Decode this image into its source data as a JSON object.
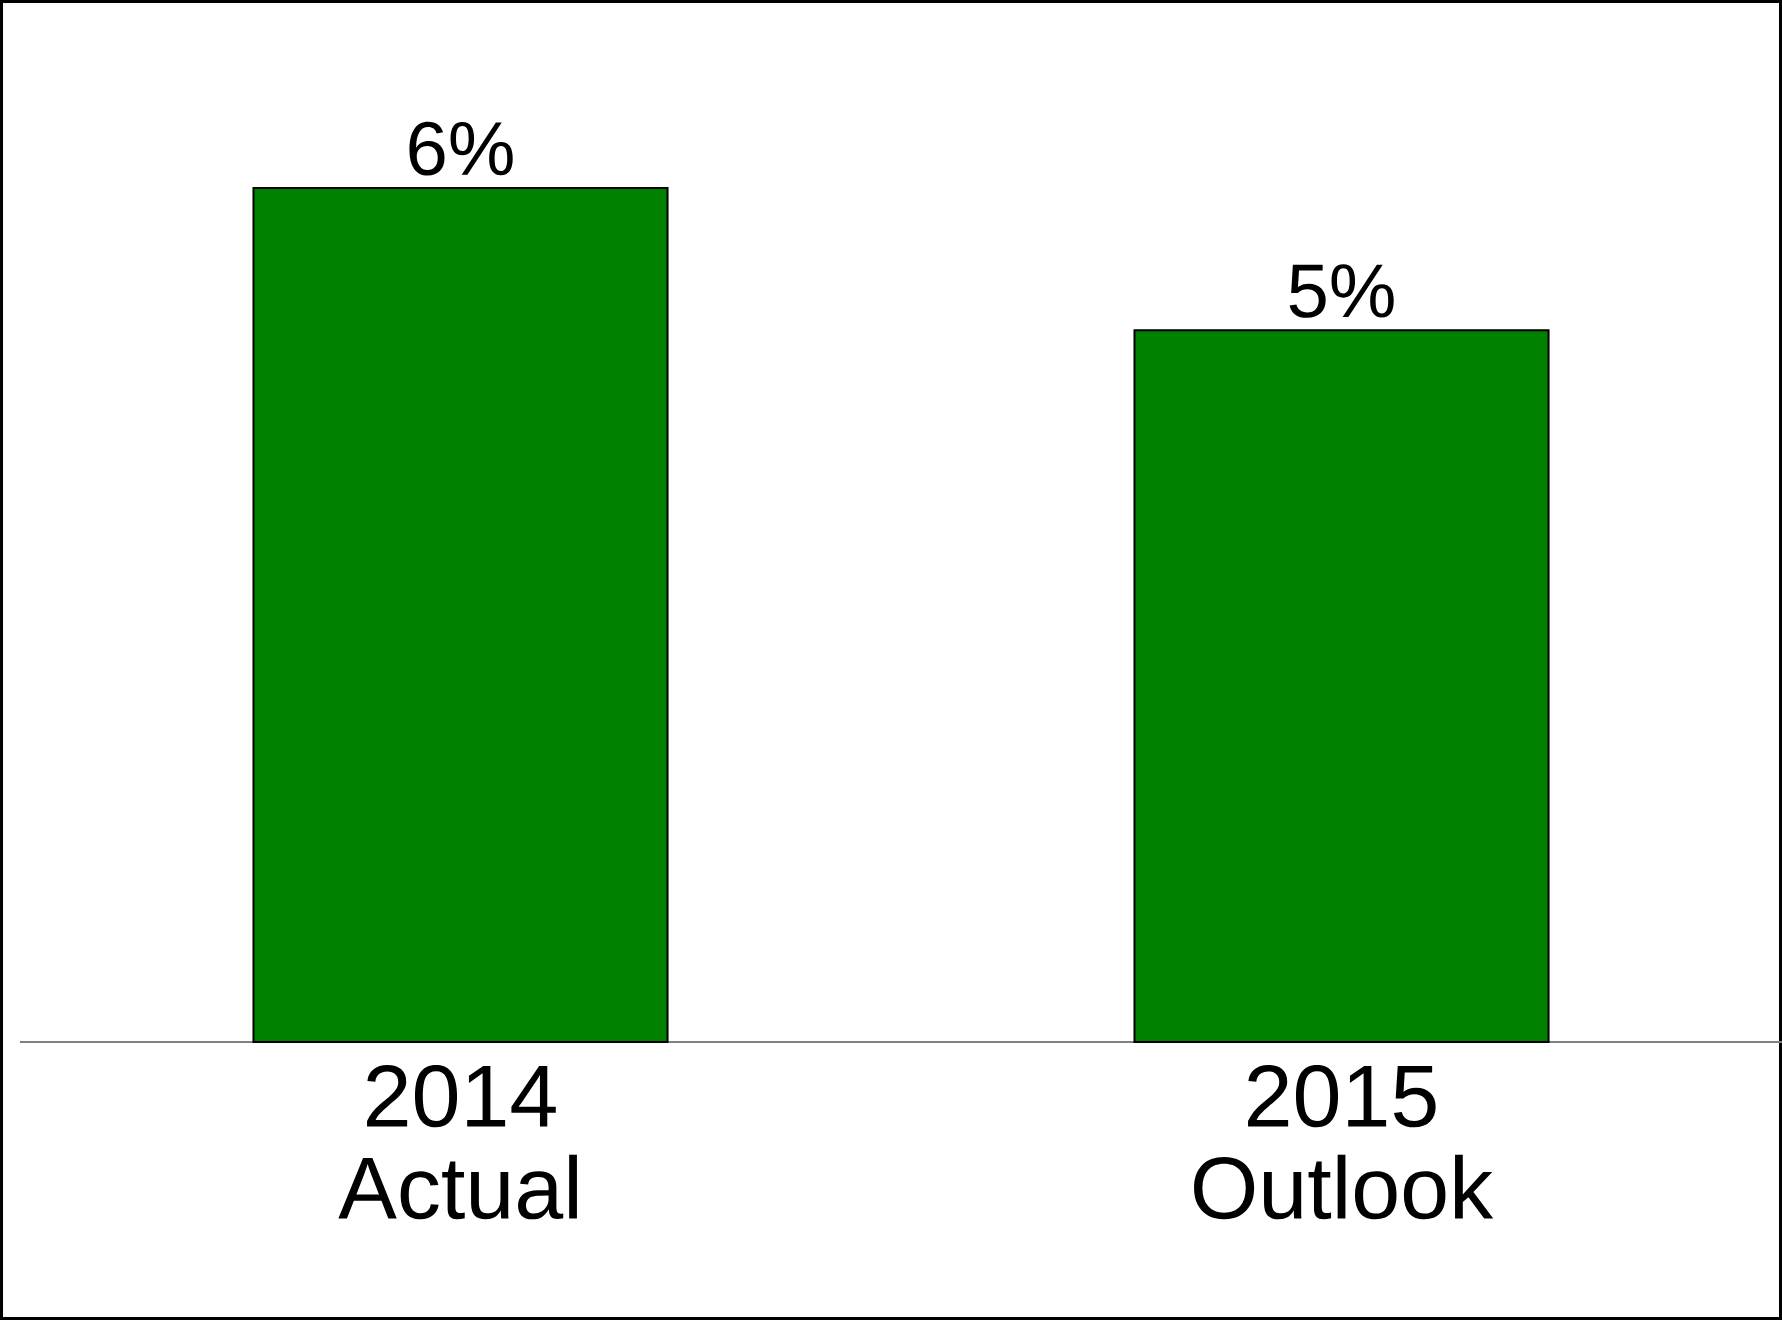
{
  "chart_data": {
    "type": "bar",
    "categories": [
      "2014 Actual",
      "2015 Outlook"
    ],
    "values": [
      6,
      5
    ],
    "color": "#008000",
    "value_labels": [
      "6%",
      "5%"
    ]
  }
}
